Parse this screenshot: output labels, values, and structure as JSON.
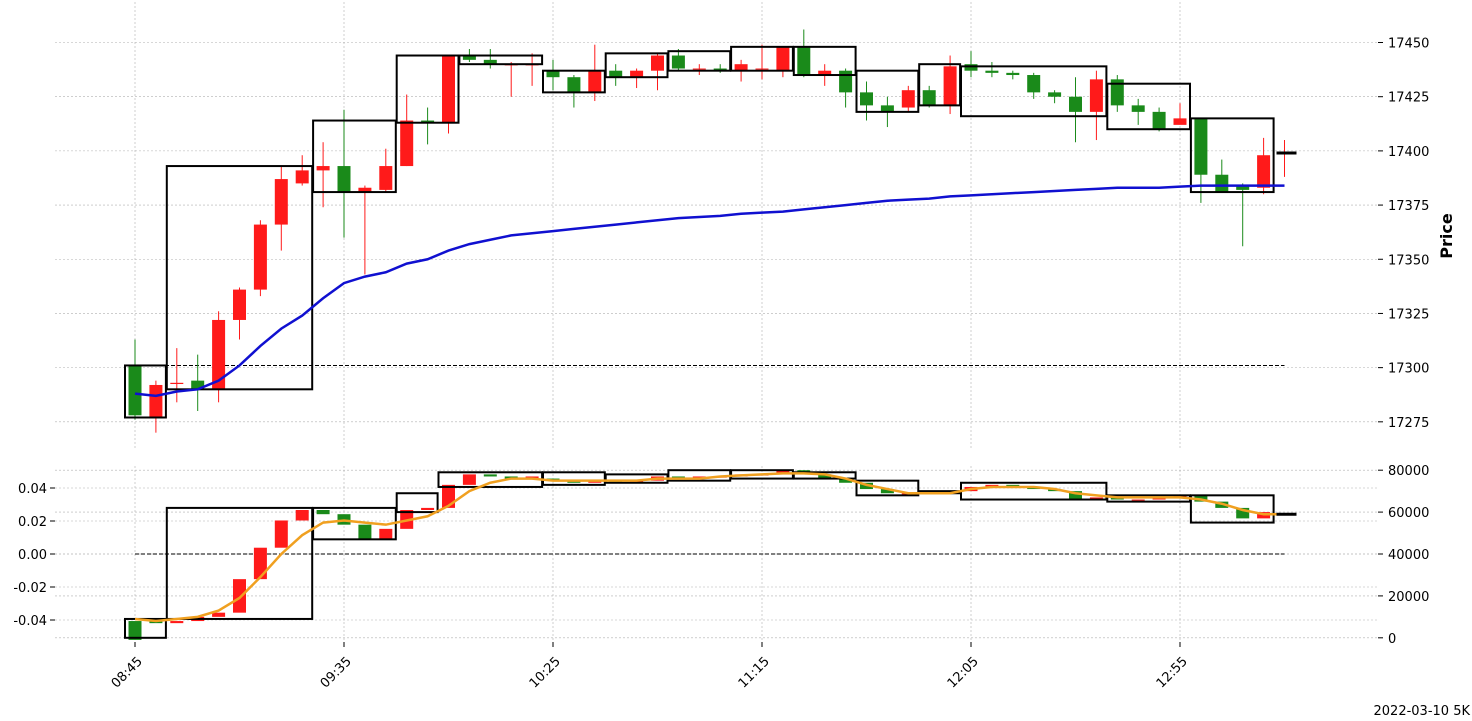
{
  "footer": {
    "label": "2022-03-10 5K"
  },
  "colors": {
    "up": "#ff1a1a",
    "down": "#1a8a1a",
    "ma_top": "#1010d0",
    "ma_bottom": "#f0a020",
    "grid": "#b0b0b0"
  },
  "chart_data": {
    "type": "candlestick",
    "x_tick_labels": [
      "08:45",
      "09:35",
      "10:25",
      "11:15",
      "12:05",
      "12:55"
    ],
    "x_tick_indices": [
      0,
      10,
      20,
      30,
      40,
      50
    ],
    "top_panel": {
      "ylabel": "Price",
      "ylim": [
        17262,
        17465
      ],
      "y_ticks": [
        17275,
        17300,
        17325,
        17350,
        17375,
        17400,
        17425,
        17450
      ],
      "reference_line": 17301,
      "candles": [
        [
          17301,
          17278,
          17313,
          17276
        ],
        [
          17277,
          17292,
          17294,
          17270
        ],
        [
          17293,
          17293,
          17309,
          17284
        ],
        [
          17294,
          17290,
          17306,
          17280
        ],
        [
          17290,
          17322,
          17326,
          17284
        ],
        [
          17322,
          17336,
          17337,
          17313
        ],
        [
          17336,
          17366,
          17368,
          17333
        ],
        [
          17366,
          17387,
          17393,
          17354
        ],
        [
          17385,
          17391,
          17398,
          17384
        ],
        [
          17391,
          17393,
          17404,
          17374
        ],
        [
          17393,
          17381,
          17419,
          17360
        ],
        [
          17381,
          17383,
          17384,
          17343
        ],
        [
          17382,
          17393,
          17401,
          17381
        ],
        [
          17393,
          17414,
          17426,
          17393
        ],
        [
          17414,
          17413,
          17420,
          17403
        ],
        [
          17413,
          17444,
          17444,
          17408
        ],
        [
          17444,
          17442,
          17447,
          17441
        ],
        [
          17442,
          17440,
          17447,
          17438
        ],
        [
          17440,
          17440,
          17441,
          17425
        ],
        [
          17440,
          17440,
          17445,
          17430
        ],
        [
          17437,
          17434,
          17442,
          17428
        ],
        [
          17434,
          17427,
          17435,
          17420
        ],
        [
          17427,
          17437,
          17449,
          17423
        ],
        [
          17437,
          17434,
          17440,
          17430
        ],
        [
          17434,
          17437,
          17438,
          17429
        ],
        [
          17437,
          17444,
          17445,
          17428
        ],
        [
          17444,
          17438,
          17447,
          17437
        ],
        [
          17438,
          17438,
          17440,
          17435
        ],
        [
          17438,
          17437,
          17440,
          17436
        ],
        [
          17437,
          17440,
          17442,
          17432
        ],
        [
          17438,
          17438,
          17449,
          17433
        ],
        [
          17437,
          17448,
          17448,
          17434
        ],
        [
          17448,
          17435,
          17456,
          17434
        ],
        [
          17435,
          17437,
          17440,
          17430
        ],
        [
          17437,
          17427,
          17438,
          17420
        ],
        [
          17427,
          17421,
          17432,
          17414
        ],
        [
          17421,
          17418,
          17425,
          17411
        ],
        [
          17420,
          17428,
          17430,
          17418
        ],
        [
          17428,
          17421,
          17430,
          17420
        ],
        [
          17421,
          17439,
          17444,
          17417
        ],
        [
          17440,
          17437,
          17446,
          17434
        ],
        [
          17437,
          17436,
          17441,
          17434
        ],
        [
          17436,
          17435,
          17437,
          17433
        ],
        [
          17435,
          17427,
          17436,
          17424
        ],
        [
          17427,
          17425,
          17428,
          17422
        ],
        [
          17425,
          17418,
          17434,
          17404
        ],
        [
          17418,
          17433,
          17437,
          17405
        ],
        [
          17433,
          17421,
          17435,
          17418
        ],
        [
          17421,
          17418,
          17424,
          17412
        ],
        [
          17418,
          17410,
          17420,
          17409
        ],
        [
          17412,
          17415,
          17422,
          17413
        ],
        [
          17415,
          17389,
          17415,
          17376
        ],
        [
          17389,
          17381,
          17396,
          17382
        ],
        [
          17384,
          17382,
          17385,
          17356
        ],
        [
          17383,
          17398,
          17406,
          17380
        ],
        [
          17399,
          17399,
          17405,
          17388
        ]
      ],
      "moving_average": [
        17288,
        17287,
        17289,
        17290,
        17294,
        17301,
        17310,
        17318,
        17324,
        17332,
        17339,
        17342,
        17344,
        17348,
        17350,
        17354,
        17357,
        17359,
        17361,
        17362,
        17363,
        17364,
        17365,
        17366,
        17367,
        17368,
        17369,
        17369.5,
        17370,
        17371,
        17371.5,
        17372,
        17373,
        17374,
        17375,
        17376,
        17377,
        17377.5,
        17378,
        17379,
        17379.5,
        17380,
        17380.5,
        17381,
        17381.5,
        17382,
        17382.5,
        17383,
        17383,
        17383,
        17383.5,
        17384,
        17384,
        17384,
        17384,
        17384
      ],
      "boxes": [
        [
          0,
          1,
          17277,
          17301
        ],
        [
          2,
          8,
          17290,
          17393
        ],
        [
          9,
          12,
          17381,
          17414
        ],
        [
          13,
          15,
          17413,
          17444
        ],
        [
          16,
          19,
          17440,
          17444
        ],
        [
          20,
          22,
          17427,
          17437
        ],
        [
          23,
          25,
          17434,
          17445
        ],
        [
          26,
          28,
          17437,
          17446
        ],
        [
          29,
          31,
          17437,
          17448
        ],
        [
          32,
          34,
          17435,
          17448
        ],
        [
          35,
          37,
          17418,
          17437
        ],
        [
          38,
          39,
          17421,
          17440
        ],
        [
          40,
          46,
          17416,
          17439
        ],
        [
          47,
          50,
          17410,
          17431
        ],
        [
          51,
          54,
          17381,
          17415
        ]
      ]
    },
    "bottom_panel": {
      "left_ticks": [
        -0.04,
        -0.02,
        0.0,
        0.02,
        0.04
      ],
      "right_ticks": [
        0,
        20000,
        40000,
        60000,
        80000
      ],
      "ylim_right": [
        -2000,
        82000
      ],
      "reference_line": 40000,
      "candles": [
        [
          8000,
          -1000
        ],
        [
          8000,
          7000
        ],
        [
          7000,
          8000
        ],
        [
          8000,
          10000
        ],
        [
          10000,
          12000
        ],
        [
          12000,
          28000
        ],
        [
          28000,
          43000
        ],
        [
          43000,
          56000
        ],
        [
          56000,
          61000
        ],
        [
          61000,
          59000
        ],
        [
          59000,
          54000
        ],
        [
          54000,
          47000
        ],
        [
          47000,
          52000
        ],
        [
          52000,
          61000
        ],
        [
          61000,
          62000
        ],
        [
          62000,
          73000
        ],
        [
          73000,
          78000
        ],
        [
          78000,
          77000
        ],
        [
          77000,
          76000
        ],
        [
          76000,
          77000
        ],
        [
          76000,
          75000
        ],
        [
          75000,
          74000
        ],
        [
          74000,
          75000
        ],
        [
          75000,
          74000
        ],
        [
          74000,
          75000
        ],
        [
          75000,
          77000
        ],
        [
          77000,
          76000
        ],
        [
          76000,
          77000
        ],
        [
          77000,
          77000
        ],
        [
          77000,
          78000
        ],
        [
          78000,
          78000
        ],
        [
          78000,
          80000
        ],
        [
          80000,
          78000
        ],
        [
          78000,
          76000
        ],
        [
          76000,
          74000
        ],
        [
          74000,
          71000
        ],
        [
          71000,
          69000
        ],
        [
          69000,
          69000
        ],
        [
          69000,
          69000
        ],
        [
          69000,
          70000
        ],
        [
          70000,
          72000
        ],
        [
          72000,
          73000
        ],
        [
          73000,
          72000
        ],
        [
          72000,
          71000
        ],
        [
          71000,
          70000
        ],
        [
          70000,
          66000
        ],
        [
          66000,
          67000
        ],
        [
          67000,
          66000
        ],
        [
          66000,
          66000
        ],
        [
          66000,
          67000
        ],
        [
          67000,
          68000
        ],
        [
          68000,
          65000
        ],
        [
          65000,
          62000
        ],
        [
          62000,
          57000
        ],
        [
          57000,
          60000
        ],
        [
          59000,
          59000
        ]
      ],
      "moving_average": [
        9000,
        8000,
        9000,
        10000,
        13000,
        19000,
        29000,
        40000,
        49000,
        55000,
        56000,
        55000,
        54000,
        56000,
        58000,
        63000,
        70000,
        74000,
        76000,
        76000,
        75000,
        75000,
        75000,
        75000,
        75000,
        76000,
        76000,
        76000,
        77000,
        77500,
        78000,
        78500,
        78500,
        78000,
        76000,
        73000,
        71000,
        69000,
        69000,
        69000,
        71000,
        72000,
        72000,
        72000,
        71000,
        69000,
        68000,
        67000,
        67000,
        67000,
        67000,
        66000,
        64000,
        61000,
        59000,
        59000
      ],
      "boxes": [
        [
          0,
          1,
          0,
          9000
        ],
        [
          2,
          8,
          9000,
          62000
        ],
        [
          9,
          12,
          47000,
          62000
        ],
        [
          13,
          14,
          60000,
          69000
        ],
        [
          15,
          19,
          72000,
          79000
        ],
        [
          20,
          22,
          73000,
          79000
        ],
        [
          23,
          25,
          74000,
          78000
        ],
        [
          26,
          28,
          75000,
          80000
        ],
        [
          29,
          31,
          76000,
          80000
        ],
        [
          32,
          34,
          76000,
          79000
        ],
        [
          35,
          37,
          68000,
          75000
        ],
        [
          38,
          39,
          69000,
          70000
        ],
        [
          40,
          46,
          66000,
          74000
        ],
        [
          47,
          50,
          65000,
          68000
        ],
        [
          51,
          54,
          55000,
          68000
        ]
      ]
    }
  }
}
